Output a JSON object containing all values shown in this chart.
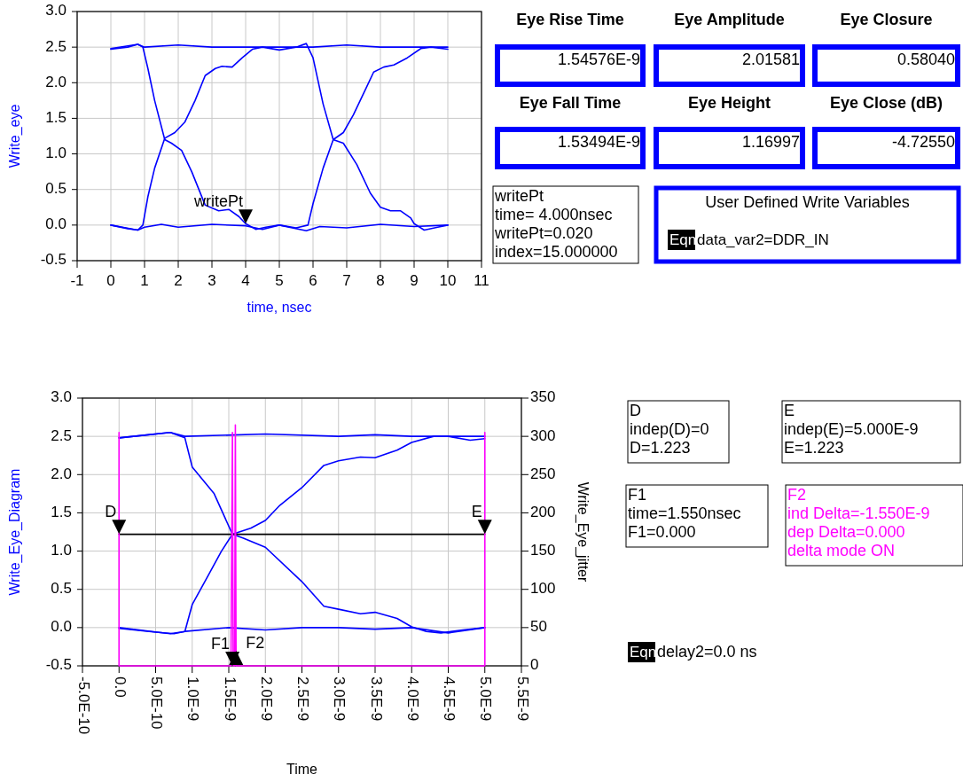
{
  "chart_data": [
    {
      "type": "line",
      "xlabel": "time, nsec",
      "ylabel": "Write_eye",
      "xlim": [
        -1,
        11
      ],
      "xticks": [
        -1,
        0,
        1,
        2,
        3,
        4,
        5,
        6,
        7,
        8,
        9,
        10,
        11
      ],
      "ylim": [
        -0.5,
        3
      ],
      "yticks": [
        {
          "value": -0.5,
          "label": "-0.5"
        },
        {
          "value": 0,
          "label": "0.0"
        },
        {
          "value": 0.5,
          "label": "0.5"
        },
        {
          "value": 1,
          "label": "1.0"
        },
        {
          "value": 1.5,
          "label": "1.5"
        },
        {
          "value": 2,
          "label": "2.0"
        },
        {
          "value": 2.5,
          "label": "2.5"
        },
        {
          "value": 3,
          "label": "3.0"
        }
      ],
      "grid": true,
      "annotations": [
        {
          "text": "writePt",
          "x": 4,
          "y": 0.02
        }
      ],
      "series": [
        {
          "color": "#0000ff",
          "x": [
            0,
            0.5,
            0.8,
            1,
            2,
            3,
            4,
            5,
            6,
            7,
            8,
            9,
            10
          ],
          "values": [
            2.47,
            2.5,
            2.54,
            2.5,
            2.53,
            2.5,
            2.5,
            2.5,
            2.5,
            2.53,
            2.5,
            2.5,
            2.5
          ]
        },
        {
          "color": "#0000ff",
          "x": [
            0,
            0.5,
            0.8,
            1,
            1.5,
            2,
            3,
            4,
            4.5,
            5,
            5.8,
            6.2,
            7,
            8,
            9,
            10
          ],
          "values": [
            0,
            -0.05,
            -0.07,
            -0.03,
            0.01,
            -0.03,
            0.01,
            -0.01,
            -0.06,
            0,
            -0.08,
            -0.02,
            -0.04,
            0.01,
            -0.02,
            0
          ]
        },
        {
          "color": "#0000ff",
          "x": [
            0,
            0.8,
            0.95,
            1.1,
            1.3,
            1.6,
            1.8,
            2.1,
            2.4,
            2.8,
            3.2,
            3.5,
            3.8,
            4,
            4.3,
            4.6,
            5,
            5.5,
            5.85,
            6,
            6.3,
            6.6,
            6.9,
            7.2,
            7.6,
            7.8,
            8.1,
            8.4,
            8.8,
            9.2,
            9.5,
            10
          ],
          "values": [
            2.48,
            2.54,
            2.5,
            2.2,
            1.75,
            1.2,
            1.15,
            1.05,
            0.75,
            0.28,
            0.2,
            0.22,
            0.12,
            0.02,
            -0.06,
            -0.03,
            0,
            -0.04,
            0,
            0.3,
            0.8,
            1.2,
            1.3,
            1.55,
            1.95,
            2.15,
            2.22,
            2.25,
            2.35,
            2.48,
            2.5,
            2.47
          ]
        },
        {
          "color": "#0000ff",
          "x": [
            0,
            0.8,
            0.95,
            1.1,
            1.3,
            1.6,
            1.9,
            2.2,
            2.5,
            2.8,
            3.1,
            3.3,
            3.6,
            3.9,
            4.2,
            4.5,
            5,
            5.5,
            5.8,
            6,
            6.3,
            6.6,
            6.9,
            7.3,
            7.7,
            8,
            8.3,
            8.6,
            8.9,
            9,
            9.3,
            9.7,
            10
          ],
          "values": [
            0,
            -0.07,
            0,
            0.4,
            0.8,
            1.22,
            1.3,
            1.45,
            1.75,
            2.1,
            2.2,
            2.23,
            2.22,
            2.35,
            2.47,
            2.5,
            2.46,
            2.5,
            2.55,
            2.35,
            1.7,
            1.2,
            1.15,
            0.85,
            0.45,
            0.25,
            0.2,
            0.2,
            0.1,
            0.02,
            -0.07,
            -0.03,
            0
          ]
        }
      ]
    },
    {
      "type": "other",
      "title": "Eye Rise Time",
      "annotations": [
        "1.54576E-9"
      ]
    },
    {
      "type": "other",
      "title": "Eye Amplitude",
      "annotations": [
        "2.01581"
      ]
    },
    {
      "type": "other",
      "title": "Eye Closure",
      "annotations": [
        "0.58040"
      ]
    },
    {
      "type": "other",
      "title": "Eye Fall Time",
      "annotations": [
        "1.53494E-9"
      ]
    },
    {
      "type": "other",
      "title": "Eye Height",
      "annotations": [
        "1.16997"
      ]
    },
    {
      "type": "other",
      "title": "Eye Close (dB)",
      "annotations": [
        "-4.72550"
      ]
    },
    {
      "type": "other",
      "annotations": [
        "writePt",
        "time= 4.000nsec",
        "writePt=0.020",
        "index=15.000000"
      ]
    },
    {
      "type": "other",
      "title": "User Defined Write Variables",
      "annotations": [
        "Eqn",
        "data_var2=DDR_IN"
      ]
    },
    {
      "type": "line",
      "xlabel": "Time",
      "ylabel": "Write_Eye_Diagram",
      "y2label": "Write_Eye_jitter",
      "xlim": [
        -5e-10,
        5.5e-09
      ],
      "xticks": [
        {
          "value": -5e-10,
          "label": "-5.0E-10"
        },
        {
          "value": 0,
          "label": "0.0"
        },
        {
          "value": 5e-10,
          "label": "5.0E-10"
        },
        {
          "value": 1e-09,
          "label": "1.0E-9"
        },
        {
          "value": 1.5e-09,
          "label": "1.5E-9"
        },
        {
          "value": 2e-09,
          "label": "2.0E-9"
        },
        {
          "value": 2.5e-09,
          "label": "2.5E-9"
        },
        {
          "value": 3e-09,
          "label": "3.0E-9"
        },
        {
          "value": 3.5e-09,
          "label": "3.5E-9"
        },
        {
          "value": 4e-09,
          "label": "4.0E-9"
        },
        {
          "value": 4.5e-09,
          "label": "4.5E-9"
        },
        {
          "value": 5e-09,
          "label": "5.0E-9"
        },
        {
          "value": 5.5e-09,
          "label": "5.5E-9"
        }
      ],
      "ylim": [
        -0.5,
        3
      ],
      "yticks": [
        {
          "value": -0.5,
          "label": "-0.5"
        },
        {
          "value": 0,
          "label": "0.0"
        },
        {
          "value": 0.5,
          "label": "0.5"
        },
        {
          "value": 1,
          "label": "1.0"
        },
        {
          "value": 1.5,
          "label": "1.5"
        },
        {
          "value": 2,
          "label": "2.0"
        },
        {
          "value": 2.5,
          "label": "2.5"
        },
        {
          "value": 3,
          "label": "3.0"
        }
      ],
      "y2lim": [
        0,
        350
      ],
      "y2ticks": [
        0,
        50,
        100,
        150,
        200,
        250,
        300,
        350
      ],
      "grid": true,
      "annotations": [
        {
          "text": "D",
          "x": 0,
          "y": 1.223
        },
        {
          "text": "E",
          "x": 5e-09,
          "y": 1.223
        },
        {
          "text": "F1",
          "x": 1.55e-09,
          "y": -0.5
        },
        {
          "text": "F2",
          "x": 1.6e-09,
          "y": -0.5
        }
      ],
      "series": [
        {
          "color": "#0000ff",
          "x": [
            0,
            4e-10,
            7e-10,
            9e-10,
            2e-09,
            3e-09,
            3.5e-09,
            4e-09,
            4.5e-09,
            5e-09
          ],
          "values": [
            2.48,
            2.52,
            2.55,
            2.5,
            2.53,
            2.5,
            2.52,
            2.5,
            2.5,
            2.5
          ]
        },
        {
          "color": "#0000ff",
          "x": [
            0,
            5e-10,
            7.5e-10,
            9e-10,
            1.5e-09,
            2e-09,
            2.5e-09,
            3e-09,
            3.5e-09,
            4e-09,
            4.5e-09,
            5e-09
          ],
          "values": [
            -0.01,
            -0.06,
            -0.08,
            -0.05,
            0,
            -0.03,
            0,
            0,
            -0.02,
            0,
            -0.07,
            0
          ]
        },
        {
          "color": "#0000ff",
          "x": [
            0,
            7e-10,
            9e-10,
            1e-09,
            1.3e-09,
            1.55e-09,
            1.7e-09,
            2e-09,
            2.5e-09,
            2.8e-09,
            3e-09,
            3.3e-09,
            3.5e-09,
            3.8e-09,
            4e-09,
            4.2e-09,
            4.4e-09,
            4.7e-09,
            5e-09
          ],
          "values": [
            2.48,
            2.55,
            2.48,
            2.1,
            1.75,
            1.22,
            1.17,
            1.05,
            0.6,
            0.28,
            0.24,
            0.18,
            0.2,
            0.12,
            0.01,
            -0.05,
            -0.07,
            -0.03,
            0
          ]
        },
        {
          "color": "#0000ff",
          "x": [
            0,
            7e-10,
            9e-10,
            1e-09,
            1.2e-09,
            1.4e-09,
            1.55e-09,
            1.8e-09,
            2e-09,
            2.2e-09,
            2.5e-09,
            2.8e-09,
            3e-09,
            3.3e-09,
            3.5e-09,
            3.8e-09,
            4e-09,
            4.3e-09,
            4.5e-09,
            4.8e-09,
            5e-09
          ],
          "values": [
            0,
            -0.08,
            -0.05,
            0.3,
            0.65,
            1,
            1.22,
            1.3,
            1.4,
            1.6,
            1.83,
            2.12,
            2.18,
            2.23,
            2.22,
            2.32,
            2.42,
            2.5,
            2.5,
            2.45,
            2.47
          ]
        },
        {
          "color": "#000000",
          "x": [
            0,
            5e-09
          ],
          "values": [
            1.22,
            1.22
          ]
        },
        {
          "color": "#ff00ff",
          "axis": "y2",
          "x": [
            0,
            0,
            0,
            1.53e-09,
            1.55e-09,
            1.56e-09,
            1.58e-09,
            1.59e-09,
            1.6e-09,
            5e-09,
            5e-09,
            5e-09
          ],
          "values": [
            305,
            48,
            0,
            0,
            305,
            0,
            0,
            315,
            0,
            0,
            48,
            305
          ]
        }
      ]
    },
    {
      "type": "other",
      "annotations": [
        "D",
        "indep(D)=0",
        "D=1.223"
      ]
    },
    {
      "type": "other",
      "annotations": [
        "E",
        "indep(E)=5.000E-9",
        "E=1.223"
      ]
    },
    {
      "type": "other",
      "annotations": [
        "F1",
        "time=1.550nsec",
        "F1=0.000"
      ]
    },
    {
      "type": "other",
      "annotations": [
        "F2",
        "ind Delta=-1.550E-9",
        "dep Delta=0.000",
        "delta mode ON"
      ]
    },
    {
      "type": "other",
      "annotations": [
        "Eqn",
        "delay2=0.0 ns"
      ]
    }
  ]
}
